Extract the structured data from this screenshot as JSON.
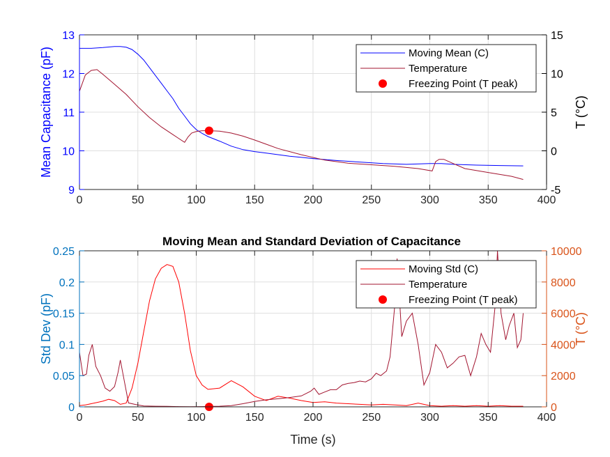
{
  "chart_data": [
    {
      "type": "line",
      "title": "",
      "xlabel": "",
      "xlim": [
        0,
        400
      ],
      "x_ticks": [
        "0",
        "50",
        "100",
        "150",
        "200",
        "250",
        "300",
        "350",
        "400"
      ],
      "ylabel_left": "Mean Capacitance (pF)",
      "ylim_left": [
        9,
        13
      ],
      "y_ticks_left": [
        "9",
        "10",
        "11",
        "12",
        "13"
      ],
      "ylabel_right": "T (°C)",
      "ylim_right": [
        -5,
        15
      ],
      "y_ticks_right": [
        "-5",
        "0",
        "5",
        "10",
        "15"
      ],
      "left_axis_color": "#0000ff",
      "right_axis_color": "#000000",
      "grid": true,
      "legend_position": "top-right",
      "series": [
        {
          "name": "Moving Mean (C)",
          "axis": "left",
          "color": "#0000ff",
          "x": [
            0,
            10,
            20,
            30,
            35,
            40,
            45,
            50,
            55,
            60,
            65,
            70,
            75,
            80,
            85,
            90,
            95,
            100,
            105,
            110,
            120,
            130,
            140,
            150,
            160,
            170,
            180,
            190,
            200,
            220,
            240,
            260,
            280,
            300,
            310,
            320,
            340,
            360,
            380
          ],
          "y": [
            12.65,
            12.65,
            12.67,
            12.7,
            12.7,
            12.68,
            12.62,
            12.5,
            12.35,
            12.15,
            11.95,
            11.75,
            11.55,
            11.35,
            11.1,
            10.9,
            10.7,
            10.55,
            10.45,
            10.37,
            10.25,
            10.12,
            10.03,
            9.98,
            9.94,
            9.9,
            9.86,
            9.83,
            9.8,
            9.75,
            9.71,
            9.67,
            9.65,
            9.67,
            9.67,
            9.65,
            9.63,
            9.62,
            9.61
          ]
        },
        {
          "name": "Temperature",
          "axis": "right",
          "color": "#a2142f",
          "x": [
            0,
            5,
            10,
            15,
            20,
            30,
            40,
            50,
            60,
            70,
            80,
            90,
            93,
            96,
            100,
            105,
            111,
            120,
            130,
            140,
            150,
            170,
            190,
            210,
            230,
            250,
            270,
            290,
            302,
            305,
            308,
            312,
            318,
            330,
            350,
            370,
            380
          ],
          "y": [
            7.7,
            9.8,
            10.4,
            10.5,
            9.9,
            8.6,
            7.3,
            5.7,
            4.3,
            3.1,
            2.1,
            1.1,
            1.8,
            2.3,
            2.5,
            2.6,
            2.6,
            2.55,
            2.3,
            1.9,
            1.4,
            0.3,
            -0.5,
            -1.2,
            -1.6,
            -1.8,
            -2.0,
            -2.3,
            -2.6,
            -1.4,
            -1.1,
            -1.1,
            -1.5,
            -2.3,
            -2.8,
            -3.3,
            -3.7
          ]
        },
        {
          "name": "Freezing Point (T peak)",
          "axis": "right",
          "color": "#ff0000",
          "marker": "circle",
          "x": [
            111
          ],
          "y": [
            2.6
          ]
        }
      ]
    },
    {
      "type": "line",
      "title": "Moving Mean and Standard Deviation of Capacitance",
      "xlabel": "Time (s)",
      "xlim": [
        0,
        400
      ],
      "x_ticks": [
        "0",
        "50",
        "100",
        "150",
        "200",
        "250",
        "300",
        "350",
        "400"
      ],
      "ylabel_left": "Std Dev (pF)",
      "ylim_left": [
        0,
        0.25
      ],
      "y_ticks_left": [
        "0",
        "0.05",
        "0.1",
        "0.15",
        "0.2",
        "0.25"
      ],
      "ylabel_right": "T (°C)",
      "ylim_right": [
        0,
        10000
      ],
      "y_ticks_right": [
        "0",
        "2000",
        "4000",
        "6000",
        "8000",
        "10000"
      ],
      "left_axis_color": "#0072bd",
      "right_axis_color": "#d95319",
      "grid": true,
      "legend_position": "top-right",
      "series": [
        {
          "name": "Moving Std (C)",
          "axis": "left",
          "color": "#ff0000",
          "x": [
            0,
            5,
            10,
            15,
            20,
            25,
            30,
            35,
            40,
            45,
            50,
            55,
            60,
            65,
            70,
            75,
            80,
            85,
            90,
            95,
            100,
            105,
            110,
            120,
            130,
            140,
            150,
            160,
            170,
            180,
            190,
            200,
            210,
            220,
            230,
            240,
            250,
            260,
            270,
            280,
            290,
            300,
            310,
            320,
            330,
            340,
            350,
            360,
            370,
            380
          ],
          "y": [
            0.002,
            0.003,
            0.005,
            0.007,
            0.009,
            0.012,
            0.01,
            0.004,
            0.006,
            0.03,
            0.07,
            0.12,
            0.17,
            0.205,
            0.222,
            0.228,
            0.225,
            0.2,
            0.15,
            0.09,
            0.05,
            0.035,
            0.028,
            0.03,
            0.042,
            0.032,
            0.017,
            0.01,
            0.017,
            0.014,
            0.01,
            0.007,
            0.008,
            0.006,
            0.005,
            0.004,
            0.003,
            0.004,
            0.003,
            0.002,
            0.006,
            0.002,
            0.001,
            0.002,
            0.001,
            0.002,
            0.001,
            0.002,
            0.001,
            0.001
          ]
        },
        {
          "name": "Temperature",
          "axis": "right",
          "color": "#a2142f",
          "x": [
            0,
            3,
            6,
            8,
            11,
            14,
            18,
            22,
            26,
            30,
            33,
            35,
            38,
            42,
            48,
            55,
            65,
            75,
            85,
            95,
            105,
            111,
            120,
            130,
            140,
            150,
            160,
            170,
            180,
            190,
            198,
            201,
            205,
            210,
            215,
            220,
            225,
            230,
            235,
            240,
            245,
            250,
            254,
            258,
            263,
            266,
            270,
            272,
            276,
            280,
            285,
            290,
            295,
            300,
            305,
            310,
            315,
            320,
            325,
            330,
            335,
            340,
            344,
            348,
            352,
            356,
            358,
            361,
            365,
            368,
            372,
            375,
            378,
            380
          ],
          "y": [
            3500,
            2000,
            2100,
            3300,
            4000,
            2600,
            2000,
            1200,
            1000,
            1300,
            2200,
            3000,
            1800,
            250,
            150,
            60,
            40,
            30,
            20,
            15,
            20,
            25,
            40,
            80,
            200,
            350,
            450,
            520,
            600,
            700,
            1000,
            1200,
            800,
            950,
            1100,
            1100,
            1400,
            1500,
            1550,
            1650,
            1600,
            1800,
            2150,
            2000,
            2300,
            3200,
            6500,
            9500,
            4500,
            5500,
            6000,
            4000,
            1400,
            2200,
            4000,
            3500,
            2500,
            2800,
            3200,
            3300,
            2000,
            3200,
            4700,
            4000,
            3500,
            6500,
            10000,
            6000,
            4300,
            5200,
            6000,
            3800,
            4300,
            6000
          ]
        },
        {
          "name": "Freezing Point (T peak)",
          "axis": "left",
          "color": "#ff0000",
          "marker": "circle",
          "x": [
            111
          ],
          "y": [
            0
          ]
        }
      ]
    }
  ]
}
